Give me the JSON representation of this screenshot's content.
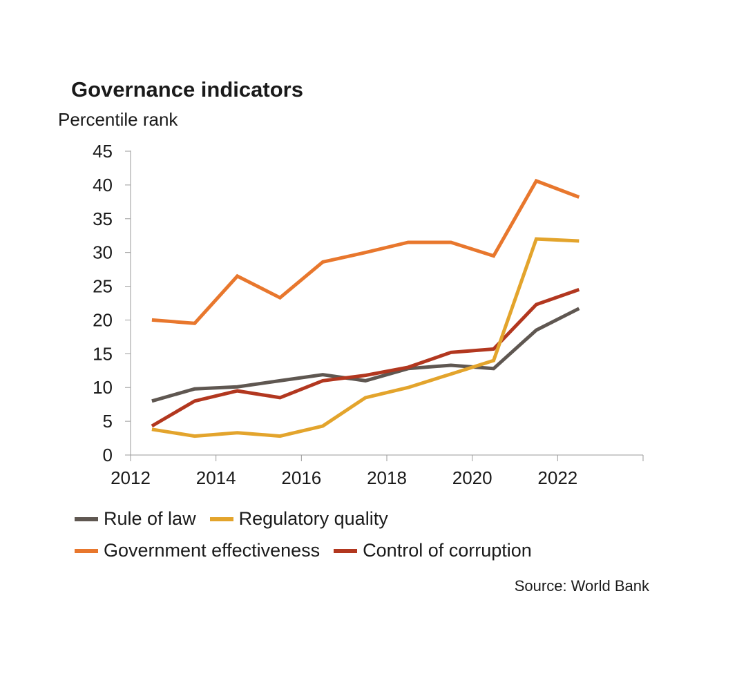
{
  "chart_data": {
    "type": "line",
    "title": "Governance indicators",
    "ylabel": "Percentile rank",
    "xlabel": "",
    "ylim": [
      0,
      45
    ],
    "y_ticks": [
      0,
      5,
      10,
      15,
      20,
      25,
      30,
      35,
      40,
      45
    ],
    "xlim": [
      2012,
      2024
    ],
    "x_tick_labels": [
      "2012",
      "2014",
      "2016",
      "2018",
      "2020",
      "2022"
    ],
    "x": [
      2012.5,
      2013.5,
      2014.5,
      2015.5,
      2016.5,
      2017.5,
      2018.5,
      2019.5,
      2020.5,
      2021.5,
      2022.5
    ],
    "series": [
      {
        "name": "Rule of law",
        "color": "#5f5751",
        "values": [
          8.0,
          9.8,
          10.1,
          11.0,
          11.9,
          11.0,
          12.8,
          13.3,
          12.8,
          18.5,
          21.7
        ]
      },
      {
        "name": "Regulatory quality",
        "color": "#e3a42c",
        "values": [
          3.8,
          2.8,
          3.3,
          2.8,
          4.3,
          8.5,
          10.0,
          12.0,
          14.0,
          32.0,
          31.7
        ]
      },
      {
        "name": "Government effectiveness",
        "color": "#e8772d",
        "values": [
          20.0,
          19.5,
          26.5,
          23.3,
          28.6,
          30.0,
          31.5,
          31.5,
          29.5,
          40.6,
          38.2
        ]
      },
      {
        "name": "Control of corruption",
        "color": "#b2371f",
        "values": [
          4.3,
          8.0,
          9.5,
          8.5,
          11.0,
          11.8,
          13.0,
          15.2,
          15.7,
          22.3,
          24.5
        ]
      }
    ],
    "legend_position": "bottom",
    "source": "Source: World Bank"
  }
}
